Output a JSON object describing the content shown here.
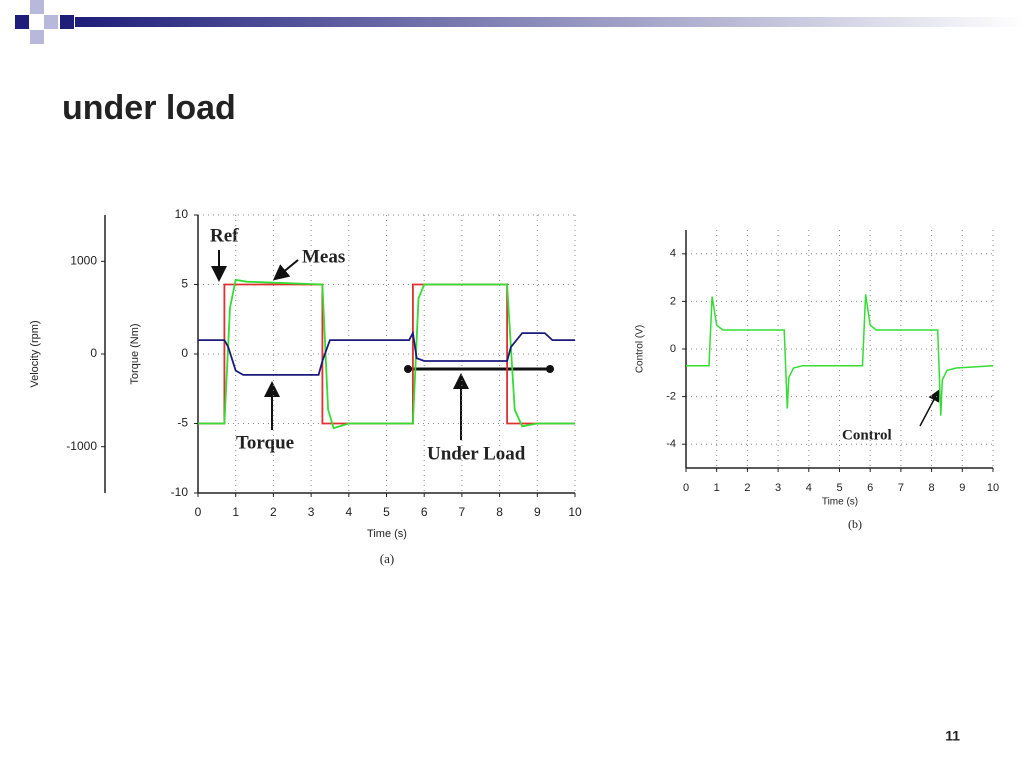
{
  "slide": {
    "title": "under load",
    "page_number": "11"
  },
  "chart_data": [
    {
      "type": "line",
      "xlabel": "Time (s)",
      "ylabel": "Torque (Nm)",
      "y2label": "Velocity (rpm)",
      "caption": "(a)",
      "xlim": [
        0,
        10
      ],
      "xticks": [
        0,
        1,
        2,
        3,
        4,
        5,
        6,
        7,
        8,
        9,
        10
      ],
      "ylim": [
        -10,
        10
      ],
      "yticks": [
        -10,
        -5,
        0,
        5,
        10
      ],
      "y2lim": [
        -1500,
        1500
      ],
      "y2ticks": [
        -1000,
        0,
        1000
      ],
      "grid": true,
      "annotations": [
        "Under Load"
      ],
      "series": [
        {
          "name": "Ref",
          "color": "#e03030",
          "axis": "y2",
          "x": [
            0,
            0.7,
            0.7,
            3.3,
            3.3,
            5.7,
            5.7,
            8.2,
            8.2,
            10
          ],
          "values": [
            -750,
            -750,
            750,
            750,
            -750,
            -750,
            750,
            750,
            -750,
            -750
          ]
        },
        {
          "name": "Meas",
          "color": "#33dd33",
          "axis": "y2",
          "x": [
            0,
            0.7,
            0.85,
            1,
            1.3,
            3.3,
            3.45,
            3.6,
            4,
            5.7,
            5.85,
            6,
            8.2,
            8.4,
            8.6,
            9,
            10
          ],
          "values": [
            -750,
            -750,
            500,
            800,
            780,
            750,
            -600,
            -800,
            -750,
            -750,
            600,
            750,
            750,
            -600,
            -780,
            -750,
            -750
          ]
        },
        {
          "name": "Torque",
          "color": "#1a1a7a",
          "x": [
            0,
            0.7,
            0.8,
            1,
            1.2,
            3.2,
            3.3,
            3.5,
            5.6,
            5.7,
            5.8,
            6,
            8.2,
            8.3,
            8.6,
            9.2,
            9.4,
            10
          ],
          "values": [
            1,
            1,
            0.5,
            -1.2,
            -1.5,
            -1.5,
            -0.5,
            1,
            1,
            1.5,
            -0.3,
            -0.5,
            -0.5,
            0.5,
            1.5,
            1.5,
            1,
            1
          ]
        }
      ]
    },
    {
      "type": "line",
      "xlabel": "Time (s)",
      "ylabel": "Control (V)",
      "caption": "(b)",
      "xlim": [
        0,
        10
      ],
      "xticks": [
        0,
        1,
        2,
        3,
        4,
        5,
        6,
        7,
        8,
        9,
        10
      ],
      "ylim": [
        -5,
        5
      ],
      "yticks": [
        -4,
        -2,
        0,
        2,
        4
      ],
      "grid": true,
      "series": [
        {
          "name": "Control",
          "color": "#33dd33",
          "x": [
            0,
            0.75,
            0.85,
            1,
            1.2,
            3.2,
            3.3,
            3.35,
            3.5,
            3.8,
            5.75,
            5.85,
            6,
            6.2,
            8.2,
            8.3,
            8.35,
            8.5,
            8.8,
            10
          ],
          "values": [
            -0.7,
            -0.7,
            2.2,
            1,
            0.8,
            0.8,
            -2.5,
            -1.2,
            -0.8,
            -0.7,
            -0.7,
            2.3,
            1,
            0.8,
            0.8,
            -2.8,
            -1.3,
            -0.9,
            -0.8,
            -0.7
          ]
        }
      ]
    }
  ]
}
